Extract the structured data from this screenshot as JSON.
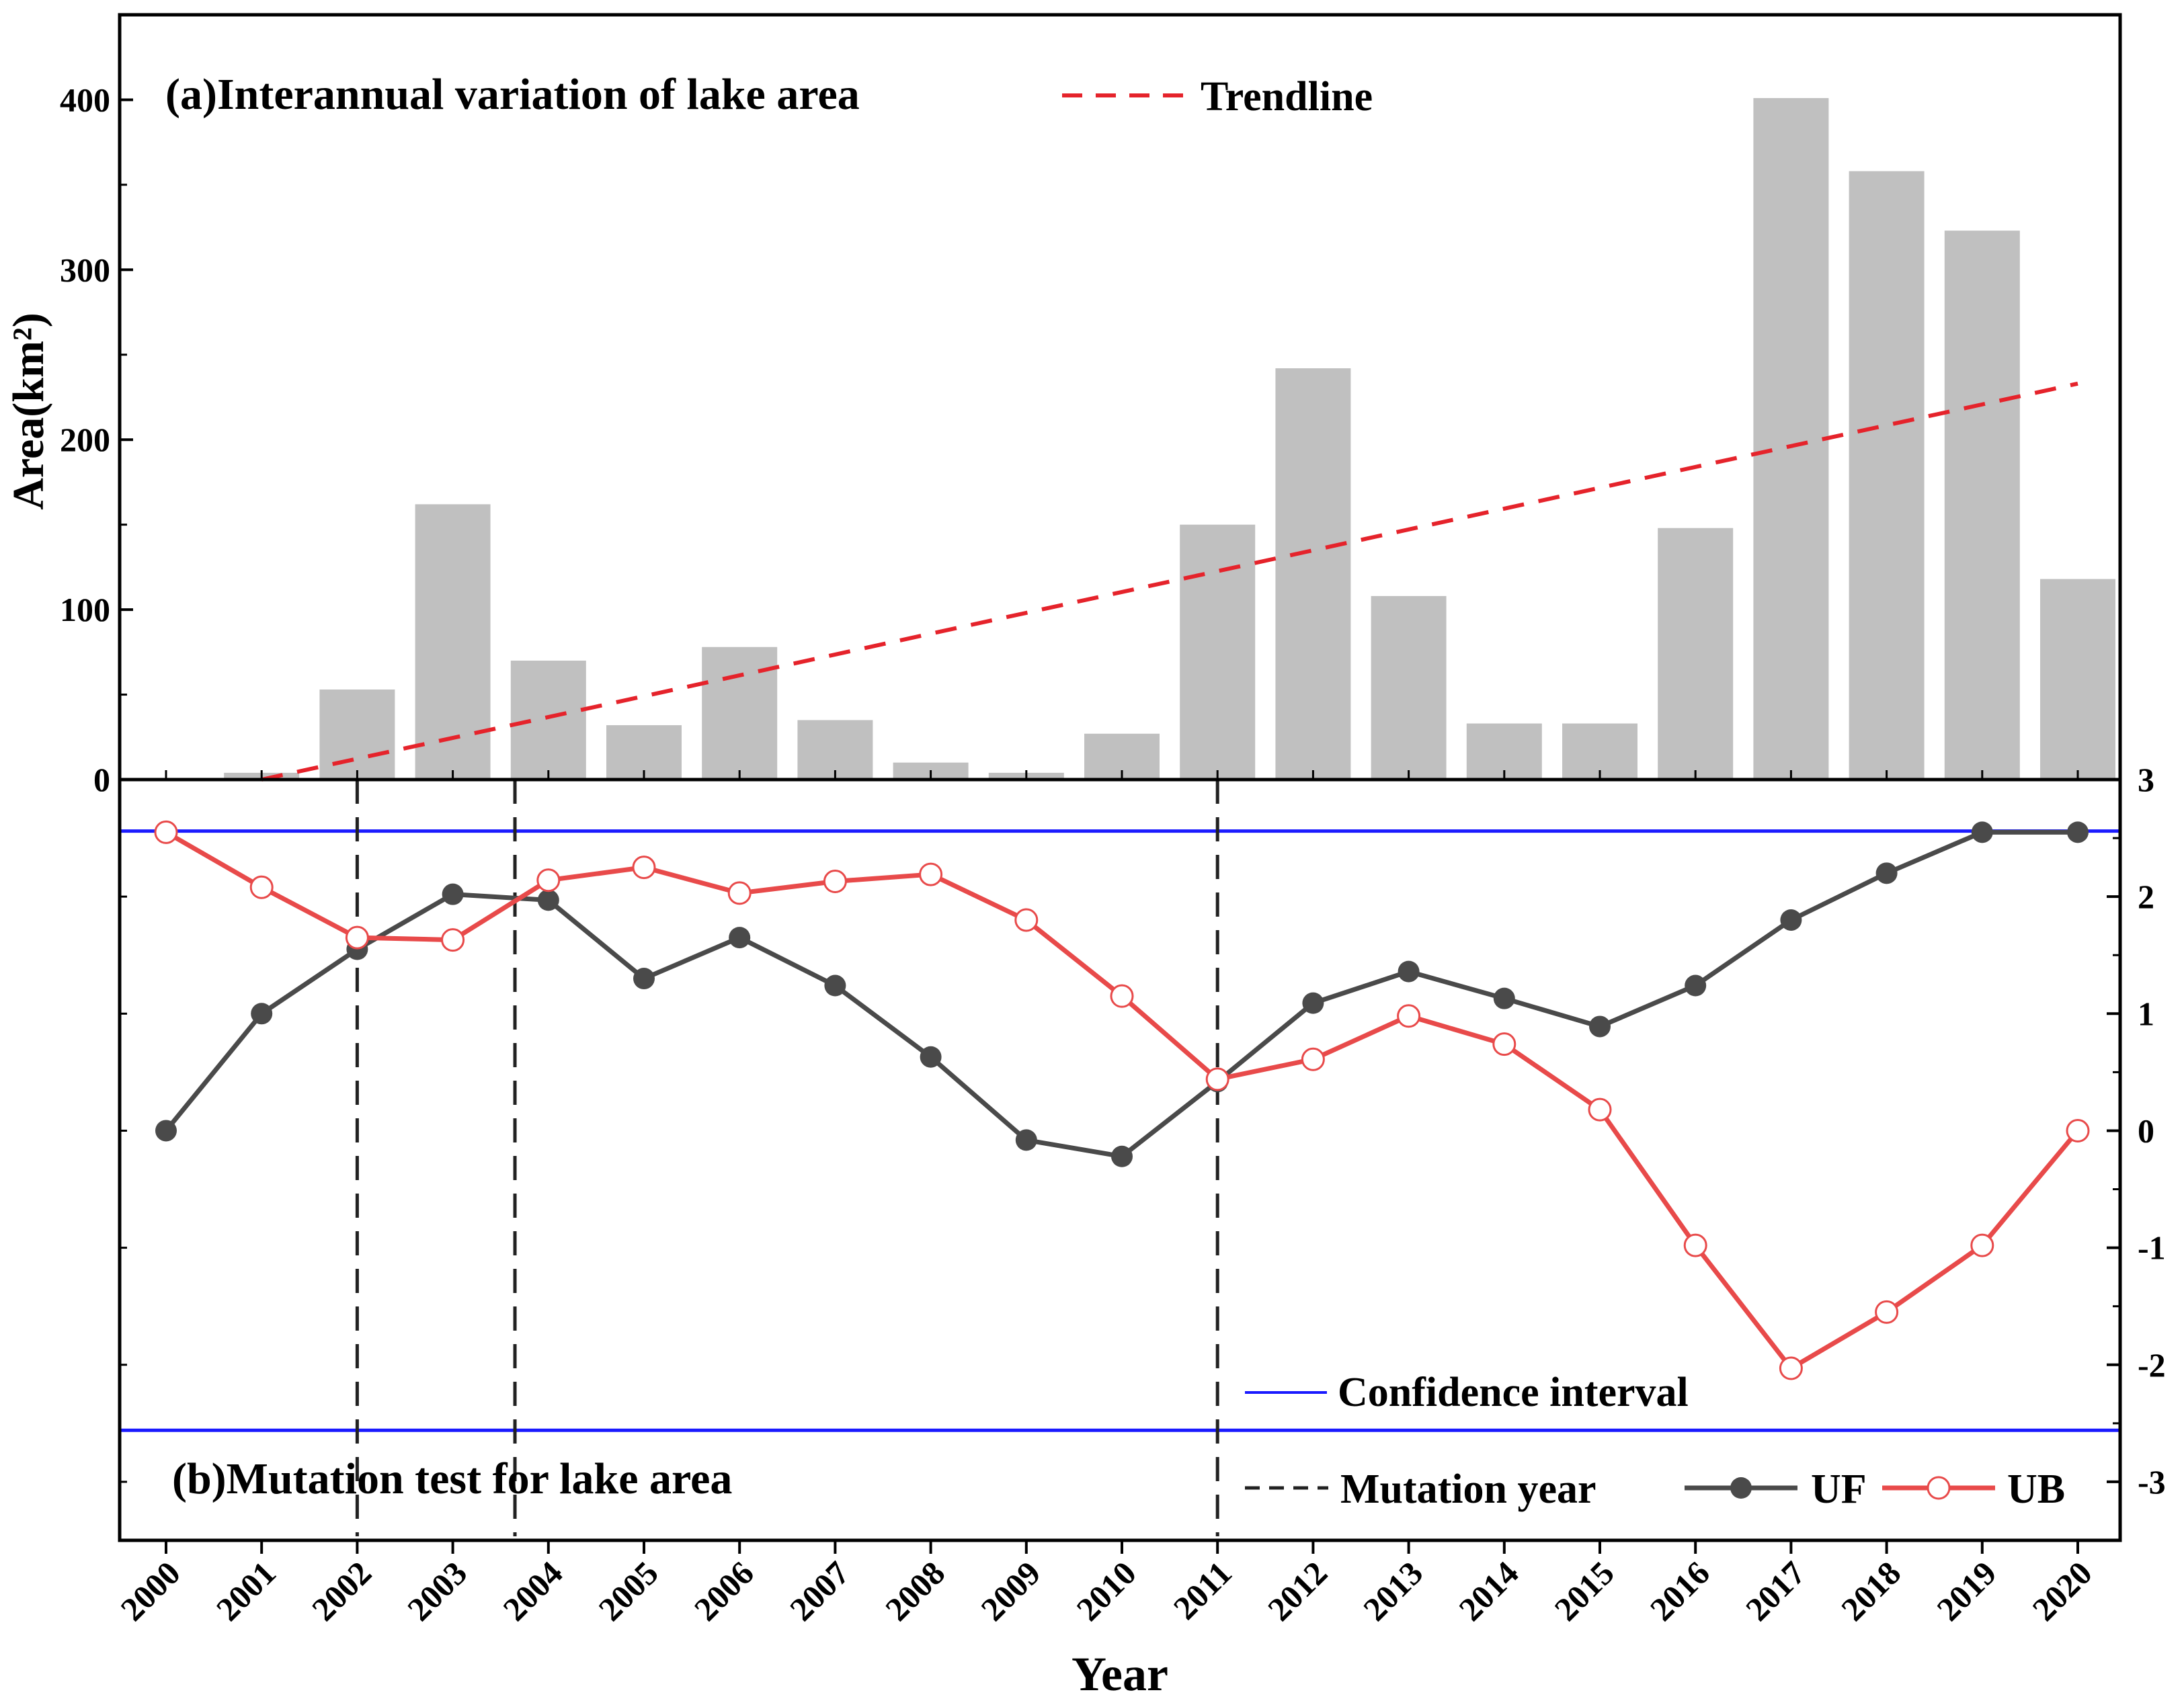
{
  "chart_data": [
    {
      "id": "a",
      "type": "bar",
      "title": "(a)Interannual variation of lake area",
      "ylabel": "Area(km²)",
      "ylim": [
        0,
        450
      ],
      "yticks": [
        0,
        100,
        200,
        300,
        400
      ],
      "ytick_labels": [
        "0",
        "100",
        "200",
        "300",
        "400"
      ],
      "categories": [
        "2000",
        "2001",
        "2002",
        "2003",
        "2004",
        "2005",
        "2006",
        "2007",
        "2008",
        "2009",
        "2010",
        "2011",
        "2012",
        "2013",
        "2014",
        "2015",
        "2016",
        "2017",
        "2018",
        "2019",
        "2020"
      ],
      "values": [
        0,
        4,
        53,
        162,
        70,
        32,
        78,
        35,
        10,
        4,
        27,
        150,
        242,
        108,
        33,
        33,
        148,
        401,
        358,
        323,
        118
      ],
      "bar_color": "#c0c0c0",
      "trendline": {
        "label": "Trendline",
        "from": [
          2001,
          0
        ],
        "to": [
          2020,
          233
        ],
        "color": "#e5232b"
      }
    },
    {
      "id": "b",
      "type": "line",
      "title": "(b)Mutation test for lake area",
      "ylim": [
        -3.5,
        3
      ],
      "yticks": [
        -3,
        -2,
        -1,
        0,
        1,
        2,
        3
      ],
      "ytick_labels": [
        "-3",
        "-2",
        "-1",
        "0",
        "1",
        "2",
        "3"
      ],
      "x": [
        2000,
        2001,
        2002,
        2003,
        2004,
        2005,
        2006,
        2007,
        2008,
        2009,
        2010,
        2011,
        2012,
        2013,
        2014,
        2015,
        2016,
        2017,
        2018,
        2019,
        2020
      ],
      "series": [
        {
          "name": "UF",
          "color": "#4a4a4a",
          "marker": "filled-circle",
          "values": [
            0.0,
            1.0,
            1.55,
            2.02,
            1.97,
            1.3,
            1.65,
            1.24,
            0.63,
            -0.08,
            -0.22,
            0.42,
            1.09,
            1.36,
            1.13,
            0.89,
            1.24,
            1.8,
            2.2,
            2.55,
            2.55
          ]
        },
        {
          "name": "UB",
          "color": "#e84a4a",
          "marker": "open-circle",
          "values": [
            2.55,
            2.08,
            1.65,
            1.63,
            2.14,
            2.25,
            2.03,
            2.13,
            2.19,
            1.8,
            1.15,
            0.44,
            0.61,
            0.98,
            0.74,
            0.18,
            -0.98,
            -2.03,
            -1.55,
            -0.98,
            0.0
          ]
        }
      ],
      "confidence_interval": {
        "label": "Confidence interval",
        "values": [
          -2.56,
          2.56
        ],
        "color": "#1a1aff"
      },
      "mutation_years": {
        "label": "Mutation year",
        "values": [
          2002.0,
          2003.65,
          2011.0
        ]
      }
    }
  ],
  "xlabel": "Year"
}
